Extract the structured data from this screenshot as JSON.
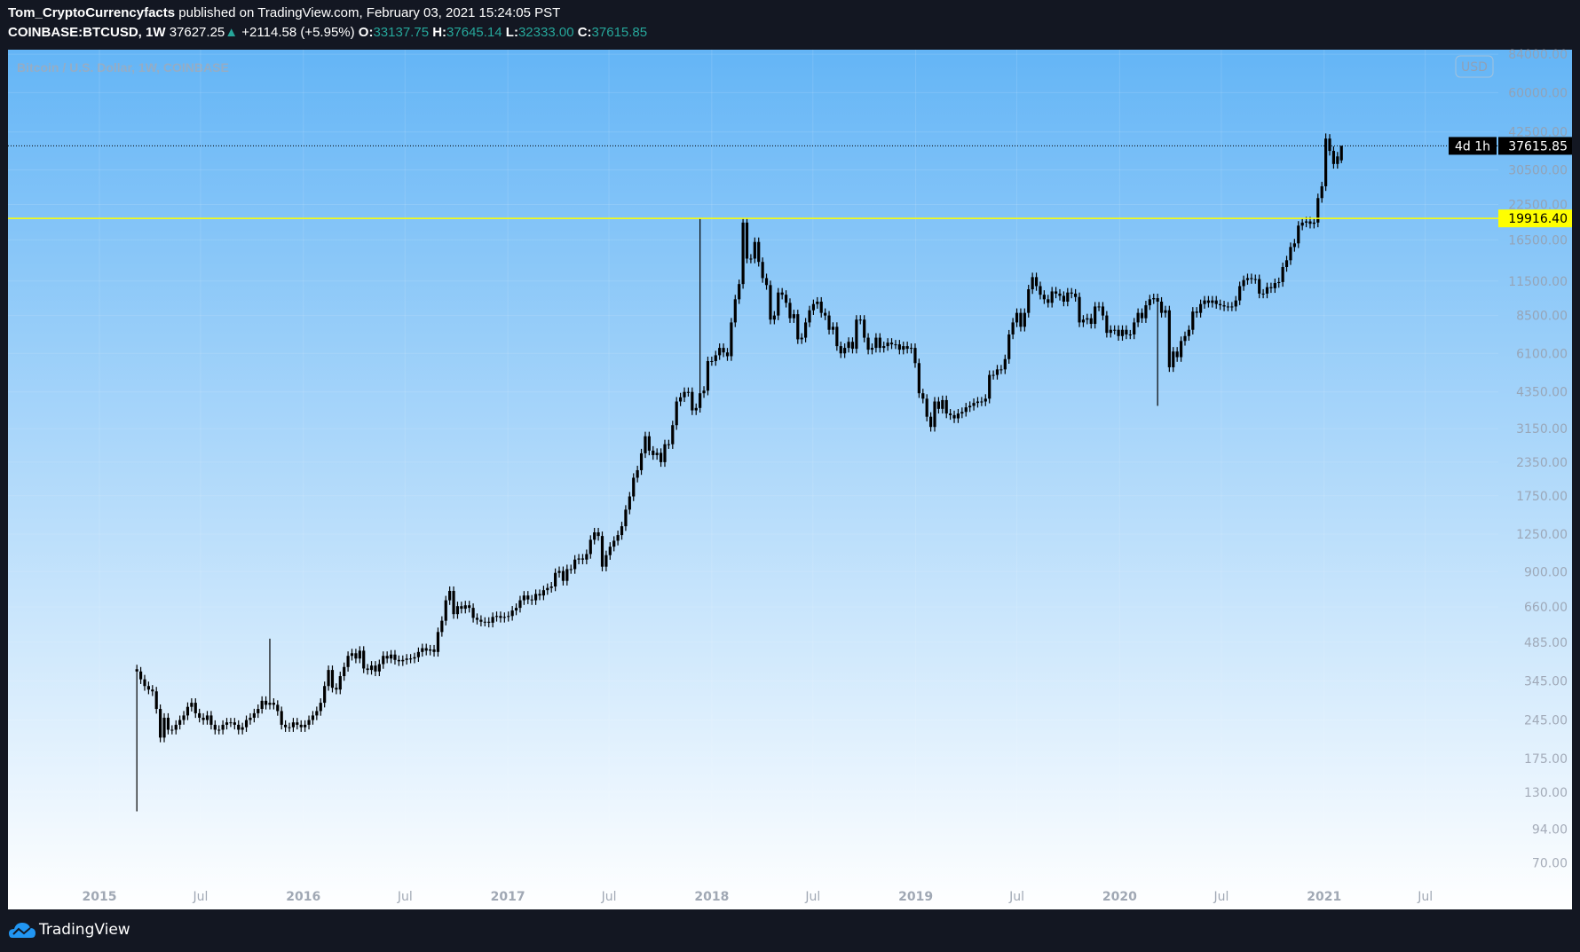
{
  "header": {
    "author": "Tom_CryptoCurrencyfacts",
    "published": "published on TradingView.com, February 03, 2021 15:24:05 PST",
    "symbol": "COINBASE:BTCUSD, 1W",
    "last": "37627.25",
    "change": "+2114.58 (+5.95%)",
    "o_label": "O:",
    "o": "33137.75",
    "h_label": "H:",
    "h": "37645.14",
    "l_label": "L:",
    "l": "32333.00",
    "c_label": "C:",
    "c": "37615.85",
    "up_color": "#26a69a"
  },
  "footer": {
    "brand": "TradingView"
  },
  "chart_data": {
    "type": "candlestick",
    "title": "Bitcoin / U.S. Dollar, 1W, COINBASE",
    "currency_badge": "USD",
    "y_scale": "log",
    "ylim": [
      63,
      90000
    ],
    "candle_color": "#000000",
    "background": [
      "#64b5f6",
      "#ffffff"
    ],
    "first_week": "2014-12-01",
    "last_week": "2021-02-01",
    "weekly_closes": [
      375,
      350,
      330,
      320,
      315,
      270,
      210,
      250,
      225,
      225,
      235,
      245,
      255,
      275,
      285,
      260,
      250,
      245,
      255,
      235,
      225,
      225,
      235,
      240,
      240,
      235,
      225,
      230,
      245,
      250,
      260,
      270,
      290,
      280,
      285,
      280,
      265,
      235,
      230,
      230,
      240,
      235,
      230,
      235,
      245,
      255,
      265,
      285,
      330,
      380,
      325,
      320,
      360,
      390,
      430,
      440,
      420,
      450,
      385,
      380,
      395,
      375,
      400,
      430,
      420,
      435,
      415,
      410,
      415,
      420,
      420,
      425,
      445,
      460,
      450,
      455,
      445,
      530,
      585,
      700,
      760,
      620,
      665,
      650,
      670,
      655,
      600,
      590,
      580,
      580,
      575,
      605,
      610,
      600,
      605,
      610,
      640,
      655,
      700,
      730,
      705,
      700,
      740,
      730,
      765,
      780,
      790,
      890,
      905,
      830,
      920,
      920,
      1000,
      1010,
      1000,
      1050,
      1190,
      1270,
      1230,
      940,
      1040,
      1120,
      1180,
      1240,
      1340,
      1550,
      1740,
      2050,
      2190,
      2540,
      2950,
      2600,
      2500,
      2550,
      2350,
      2750,
      2750,
      3250,
      4000,
      4150,
      4350,
      4350,
      3700,
      3780,
      4300,
      4400,
      5700,
      5700,
      6000,
      6400,
      6150,
      5950,
      8000,
      9800,
      11200,
      19200,
      14000,
      14000,
      16200,
      13600,
      11800,
      11100,
      8200,
      8500,
      10400,
      10200,
      9500,
      8300,
      8600,
      6900,
      7000,
      8000,
      8900,
      9400,
      9600,
      8700,
      8500,
      7500,
      7700,
      6500,
      6100,
      6400,
      6750,
      6350,
      8200,
      8200,
      7000,
      6300,
      6400,
      7000,
      6400,
      6500,
      6700,
      6600,
      6600,
      6300,
      6500,
      6350,
      6400,
      5600,
      4300,
      4100,
      3500,
      3200,
      4000,
      3750,
      4050,
      3600,
      3550,
      3450,
      3600,
      3650,
      3800,
      3850,
      3950,
      4000,
      4000,
      4100,
      5050,
      5050,
      5300,
      5300,
      5800,
      7200,
      8000,
      8700,
      7700,
      8700,
      10700,
      11900,
      11000,
      10200,
      9800,
      9500,
      10500,
      10300,
      10100,
      9600,
      10400,
      10300,
      10000,
      8000,
      8200,
      8300,
      7900,
      9200,
      9200,
      8500,
      7300,
      7500,
      7500,
      7100,
      7500,
      7200,
      7200,
      8000,
      8700,
      8300,
      9300,
      9800,
      9900,
      9600,
      8700,
      8900,
      5400,
      6200,
      5900,
      6800,
      7100,
      7500,
      8800,
      8700,
      9400,
      9700,
      9500,
      9700,
      9400,
      9300,
      9200,
      9200,
      9200,
      9700,
      11000,
      11600,
      11800,
      11700,
      11700,
      10300,
      10300,
      10900,
      10800,
      11300,
      11400,
      13000,
      13800,
      15500,
      16000,
      18700,
      19200,
      19400,
      19000,
      19200,
      23800,
      26400,
      40100,
      36000,
      32100,
      34300
    ],
    "last_candle": {
      "open": 33137.75,
      "high": 37645.14,
      "low": 32333.0,
      "close": 37615.85
    },
    "extremes": [
      {
        "week": "2015-01-12",
        "low": 110
      },
      {
        "week": "2015-11-02",
        "high": 500
      },
      {
        "week": "2017-12-11",
        "high": 19891
      },
      {
        "week": "2020-03-09",
        "low": 3850
      },
      {
        "week": "2021-01-04",
        "high": 41950
      }
    ],
    "y_ticks": [
      "84000.00",
      "60000.00",
      "42500.00",
      "30500.00",
      "22500.00",
      "16500.00",
      "11500.00",
      "8500.00",
      "6100.00",
      "4350.00",
      "3150.00",
      "2350.00",
      "1750.00",
      "1250.00",
      "900.00",
      "660.00",
      "485.00",
      "345.00",
      "245.00",
      "175.00",
      "130.00",
      "94.00",
      "70.00"
    ],
    "x_ticks": [
      {
        "date": "2015-01-01",
        "label": "2015"
      },
      {
        "date": "2015-07-01",
        "label": "Jul"
      },
      {
        "date": "2016-01-01",
        "label": "2016"
      },
      {
        "date": "2016-07-01",
        "label": "Jul"
      },
      {
        "date": "2017-01-01",
        "label": "2017"
      },
      {
        "date": "2017-07-01",
        "label": "Jul"
      },
      {
        "date": "2018-01-01",
        "label": "2018"
      },
      {
        "date": "2018-07-01",
        "label": "Jul"
      },
      {
        "date": "2019-01-01",
        "label": "2019"
      },
      {
        "date": "2019-07-01",
        "label": "Jul"
      },
      {
        "date": "2020-01-01",
        "label": "2020"
      },
      {
        "date": "2020-07-01",
        "label": "Jul"
      },
      {
        "date": "2021-01-01",
        "label": "2021"
      },
      {
        "date": "2021-07-01",
        "label": "Jul"
      }
    ],
    "last_price_label": "37615.85",
    "countdown_label": "4d 1h",
    "horizontal_line": {
      "value": 19916.4,
      "label": "19916.40",
      "color": "#ffff00"
    }
  }
}
